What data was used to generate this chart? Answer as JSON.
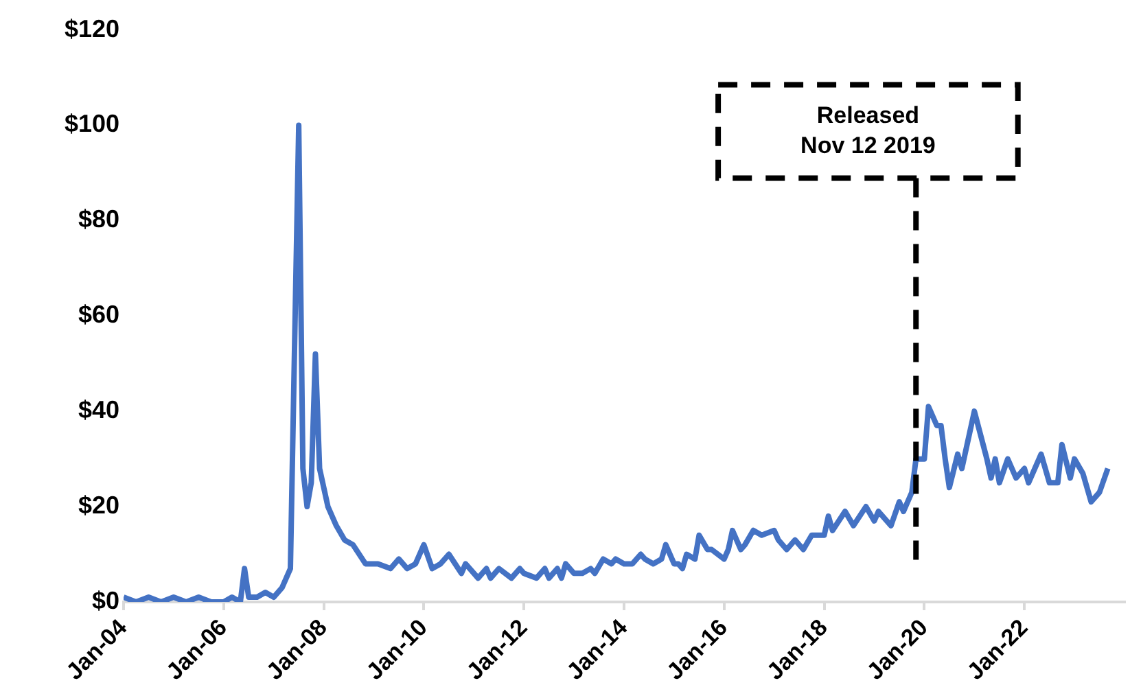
{
  "chart_data": {
    "type": "line",
    "x": [
      "2004-01",
      "2004-04",
      "2004-07",
      "2004-10",
      "2005-01",
      "2005-04",
      "2005-07",
      "2005-10",
      "2006-01",
      "2006-03",
      "2006-05",
      "2006-06",
      "2006-07",
      "2006-09",
      "2006-11",
      "2007-01",
      "2007-03",
      "2007-05",
      "2007-07",
      "2007-08",
      "2007-09",
      "2007-10",
      "2007-11",
      "2007-12",
      "2008-02",
      "2008-04",
      "2008-06",
      "2008-08",
      "2008-11",
      "2009-02",
      "2009-05",
      "2009-07",
      "2009-09",
      "2009-11",
      "2010-01",
      "2010-03",
      "2010-05",
      "2010-07",
      "2010-10",
      "2010-11",
      "2011-02",
      "2011-04",
      "2011-05",
      "2011-07",
      "2011-10",
      "2011-12",
      "2012-01",
      "2012-04",
      "2012-06",
      "2012-07",
      "2012-09",
      "2012-10",
      "2012-11",
      "2013-01",
      "2013-03",
      "2013-05",
      "2013-06",
      "2013-08",
      "2013-10",
      "2013-11",
      "2014-01",
      "2014-03",
      "2014-05",
      "2014-06",
      "2014-08",
      "2014-10",
      "2014-11",
      "2015-01",
      "2015-02",
      "2015-03",
      "2015-04",
      "2015-06",
      "2015-07",
      "2015-09",
      "2015-10",
      "2016-01",
      "2016-02",
      "2016-03",
      "2016-05",
      "2016-06",
      "2016-08",
      "2016-10",
      "2017-01",
      "2017-02",
      "2017-04",
      "2017-06",
      "2017-08",
      "2017-10",
      "2018-01",
      "2018-02",
      "2018-03",
      "2018-06",
      "2018-08",
      "2018-11",
      "2019-01",
      "2019-02",
      "2019-05",
      "2019-07",
      "2019-08",
      "2019-10",
      "2019-11",
      "2020-01",
      "2020-02",
      "2020-04",
      "2020-05",
      "2020-06",
      "2020-07",
      "2020-09",
      "2020-10",
      "2021-01",
      "2021-04",
      "2021-05",
      "2021-06",
      "2021-07",
      "2021-09",
      "2021-11",
      "2022-01",
      "2022-02",
      "2022-05",
      "2022-07",
      "2022-09",
      "2022-10",
      "2022-12",
      "2023-01",
      "2023-03",
      "2023-05",
      "2023-07",
      "2023-09"
    ],
    "series": [
      {
        "color": "#4472c4",
        "values": [
          1,
          0,
          1,
          0,
          1,
          0,
          1,
          0,
          0,
          1,
          0,
          7,
          1,
          1,
          2,
          1,
          3,
          7,
          100,
          28,
          20,
          25,
          52,
          28,
          20,
          16,
          13,
          12,
          8,
          8,
          7,
          9,
          7,
          8,
          12,
          7,
          8,
          10,
          6,
          8,
          5,
          7,
          5,
          7,
          5,
          7,
          6,
          5,
          7,
          5,
          7,
          5,
          8,
          6,
          6,
          7,
          6,
          9,
          8,
          9,
          8,
          8,
          10,
          9,
          8,
          9,
          12,
          8,
          8,
          7,
          10,
          9,
          14,
          11,
          11,
          9,
          11,
          15,
          11,
          12,
          15,
          14,
          15,
          13,
          11,
          13,
          11,
          14,
          14,
          18,
          15,
          19,
          16,
          20,
          17,
          19,
          16,
          21,
          19,
          23,
          30,
          30,
          41,
          37,
          37,
          30,
          24,
          31,
          28,
          40,
          30,
          26,
          30,
          25,
          30,
          26,
          28,
          25,
          31,
          25,
          25,
          33,
          26,
          30,
          27,
          21,
          23,
          28
        ]
      }
    ],
    "xlim": [
      "2004-01",
      "2024-01"
    ],
    "xticks": [
      {
        "value": "2004-01",
        "label": "Jan-04"
      },
      {
        "value": "2006-01",
        "label": "Jan-06"
      },
      {
        "value": "2008-01",
        "label": "Jan-08"
      },
      {
        "value": "2010-01",
        "label": "Jan-10"
      },
      {
        "value": "2012-01",
        "label": "Jan-12"
      },
      {
        "value": "2014-01",
        "label": "Jan-14"
      },
      {
        "value": "2016-01",
        "label": "Jan-16"
      },
      {
        "value": "2018-01",
        "label": "Jan-18"
      },
      {
        "value": "2020-01",
        "label": "Jan-20"
      },
      {
        "value": "2022-01",
        "label": "Jan-22"
      }
    ],
    "ylim": [
      0,
      120
    ],
    "yticks": [
      {
        "value": 0,
        "label": "$0"
      },
      {
        "value": 20,
        "label": "$20"
      },
      {
        "value": 40,
        "label": "$40"
      },
      {
        "value": 60,
        "label": "$60"
      },
      {
        "value": 80,
        "label": "$80"
      },
      {
        "value": 100,
        "label": "$100"
      },
      {
        "value": 120,
        "label": "$120"
      }
    ],
    "ref_lines": [
      {
        "axis": "x",
        "value": "2019-11",
        "label": "Released\nNov 12 2019",
        "color": "#000000",
        "line_style": "dashed"
      }
    ],
    "grid": false,
    "legend": false,
    "marker": "none",
    "line_style": "solid"
  }
}
